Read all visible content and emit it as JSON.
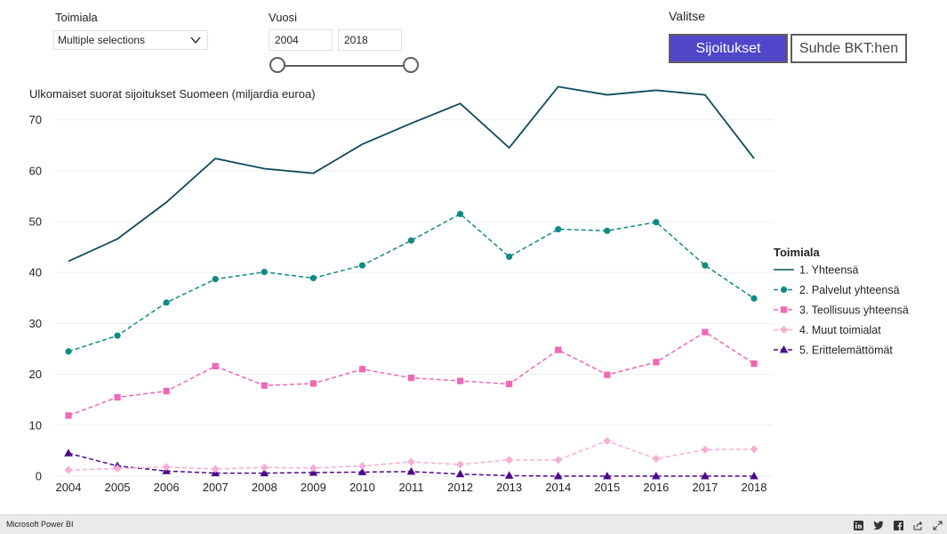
{
  "filters": {
    "toimiala_label": "Toimiala",
    "toimiala_value": "Multiple selections",
    "vuosi_label": "Vuosi",
    "year_start": "2004",
    "year_end": "2018",
    "year_range": [
      2004,
      2018
    ]
  },
  "toggle": {
    "label": "Valitse",
    "options": [
      "Sijoitukset",
      "Suhde BKT:hen"
    ],
    "selected": "Sijoitukset",
    "accent": "#4f46c9"
  },
  "chart_title": "Ulkomaiset suorat sijoitukset Suomeen (miljardia euroa)",
  "chart_data": {
    "type": "line",
    "title": "Ulkomaiset suorat sijoitukset Suomeen (miljardia euroa)",
    "x": [
      2004,
      2005,
      2006,
      2007,
      2008,
      2009,
      2010,
      2011,
      2012,
      2013,
      2014,
      2015,
      2016,
      2017,
      2018
    ],
    "ylim": [
      0,
      75
    ],
    "yticks": [
      0,
      10,
      20,
      30,
      40,
      50,
      60,
      70
    ],
    "grid": true,
    "legend_title": "Toimiala",
    "legend_position": "right",
    "series": [
      {
        "name": "1. Yhteensä",
        "color": "#0f4a5c",
        "dash": "solid",
        "marker": "none",
        "values": [
          42.2,
          46.6,
          53.8,
          62.4,
          60.4,
          59.5,
          65.2,
          69.3,
          73.2,
          64.5,
          76.5,
          74.9,
          75.8,
          74.9,
          62.4
        ]
      },
      {
        "name": "2. Palvelut yhteensä",
        "color": "#118a83",
        "dash": "dashed",
        "marker": "circle",
        "values": [
          24.5,
          27.6,
          34.1,
          38.7,
          40.1,
          38.9,
          41.4,
          46.3,
          51.5,
          43.1,
          48.5,
          48.2,
          49.9,
          41.4,
          34.9
        ]
      },
      {
        "name": "3. Teollisuus yhteensä",
        "color": "#f067b4",
        "dash": "dashed",
        "marker": "square",
        "values": [
          11.9,
          15.5,
          16.7,
          21.6,
          17.8,
          18.2,
          21.0,
          19.3,
          18.7,
          18.1,
          24.8,
          19.9,
          22.4,
          28.3,
          22.1
        ]
      },
      {
        "name": "4. Muut toimialat",
        "color": "#f7aed3",
        "dash": "dashed",
        "marker": "diamond",
        "values": [
          1.2,
          1.5,
          1.8,
          1.4,
          1.7,
          1.6,
          2.0,
          2.8,
          2.3,
          3.2,
          3.2,
          6.9,
          3.4,
          5.2,
          5.3
        ]
      },
      {
        "name": "5. Erittelemättömät",
        "color": "#4b0a8a",
        "dash": "dashed",
        "marker": "triangle",
        "values": [
          4.5,
          2.0,
          1.0,
          0.6,
          0.6,
          0.7,
          0.8,
          0.9,
          0.4,
          0.1,
          0.0,
          0.0,
          0.0,
          0.0,
          0.0
        ]
      }
    ]
  },
  "footer": {
    "brand": "Microsoft Power BI",
    "icons": [
      "linkedin-icon",
      "twitter-icon",
      "facebook-icon",
      "share-icon",
      "fullscreen-icon"
    ]
  }
}
